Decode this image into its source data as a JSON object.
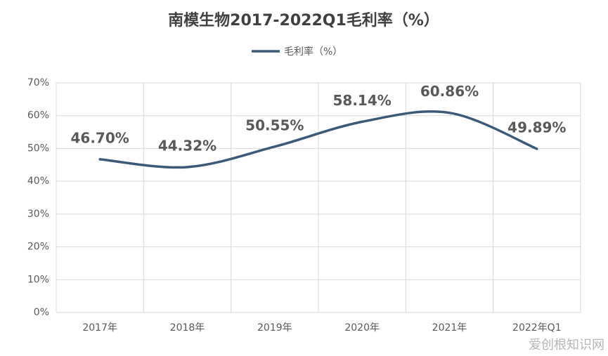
{
  "chart_data": {
    "type": "line",
    "title": "南模生物2017-2022Q1毛利率（%）",
    "categories": [
      "2017年",
      "2018年",
      "2019年",
      "2020年",
      "2021年",
      "2022年Q1"
    ],
    "series": [
      {
        "name": "毛利率（%）",
        "color": "#3b5a7a",
        "values": [
          46.7,
          44.32,
          50.55,
          58.14,
          60.86,
          49.89
        ],
        "value_labels": [
          "46.70%",
          "44.32%",
          "50.55%",
          "58.14%",
          "60.86%",
          "49.89%"
        ]
      }
    ],
    "ylim": [
      0,
      70
    ],
    "yticks": [
      {
        "value": 0,
        "label": "0%"
      },
      {
        "value": 10,
        "label": "10%"
      },
      {
        "value": 20,
        "label": "20%"
      },
      {
        "value": 30,
        "label": "30%"
      },
      {
        "value": 40,
        "label": "40%"
      },
      {
        "value": 50,
        "label": "50%"
      },
      {
        "value": 60,
        "label": "60%"
      },
      {
        "value": 70,
        "label": "70%"
      }
    ],
    "grid": true,
    "smooth": true,
    "legend": "top",
    "watermark": "爱创根知识网"
  }
}
